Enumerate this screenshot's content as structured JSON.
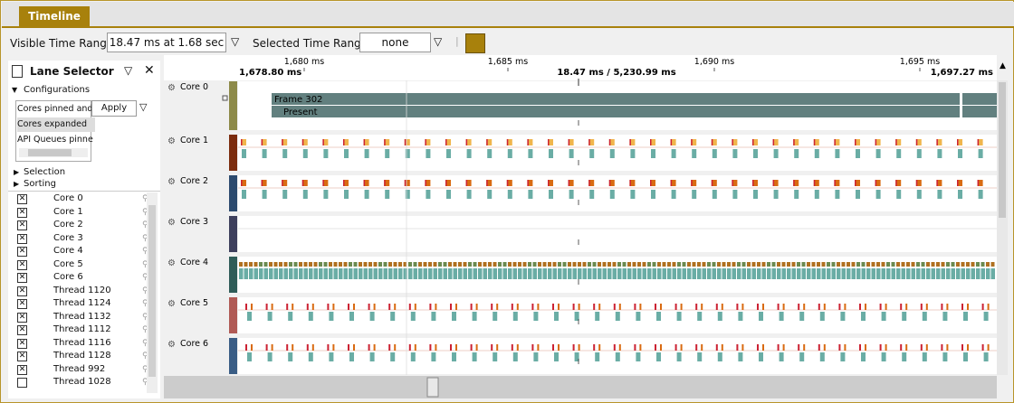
{
  "tab": "Timeline",
  "toolbar": {
    "visible_label": "Visible Time Range:",
    "visible_value": "18.47 ms at 1.68 sec",
    "selected_label": "Selected Time Range:",
    "selected_value": "none"
  },
  "lane_selector": {
    "title": "Lane Selector",
    "configurations": "Configurations",
    "config_items": [
      "Cores pinned and",
      "Cores expanded",
      "API Queues pinne"
    ],
    "apply": "Apply",
    "selection": "Selection",
    "sorting": "Sorting",
    "lanes": [
      {
        "name": "Core 0",
        "color": "#8d8a49",
        "checked": true
      },
      {
        "name": "Core 1",
        "color": "#7b2c0e",
        "checked": true
      },
      {
        "name": "Core 2",
        "color": "#2c4a6e",
        "checked": true
      },
      {
        "name": "Core 3",
        "color": "#3d3f5c",
        "checked": true
      },
      {
        "name": "Core 4",
        "color": "#2f5c58",
        "checked": true
      },
      {
        "name": "Core 5",
        "color": "#b05a55",
        "checked": true
      },
      {
        "name": "Core 6",
        "color": "#3a5d85",
        "checked": true
      },
      {
        "name": "Thread 1120",
        "color": "#6aada5",
        "checked": true
      },
      {
        "name": "Thread 1124",
        "color": "#a6cf94",
        "checked": true
      },
      {
        "name": "Thread 1132",
        "color": "#d6e0a7",
        "checked": true
      },
      {
        "name": "Thread 1112",
        "color": "#f0d675",
        "checked": true
      },
      {
        "name": "Thread 1116",
        "color": "#d96b12",
        "checked": true
      },
      {
        "name": "Thread 1128",
        "color": "#7aa65a",
        "checked": true
      },
      {
        "name": "Thread 992",
        "color": "#94b4d8",
        "checked": true
      },
      {
        "name": "Thread 1028",
        "color": "#d7ede8",
        "checked": false
      }
    ]
  },
  "timeline": {
    "start": "1,678.80 ms",
    "end": "1,697.27 ms",
    "center": "18.47 ms / 5,230.99 ms",
    "ticks": [
      "1,680 ms",
      "1,685 ms",
      "1,690 ms",
      "1,695 ms"
    ],
    "frame_label": "Frame 302",
    "present_label": "Present",
    "lanes": [
      "Core 0",
      "Core 1",
      "Core 2",
      "Core 3",
      "Core 4",
      "Core 5",
      "Core 6"
    ]
  }
}
